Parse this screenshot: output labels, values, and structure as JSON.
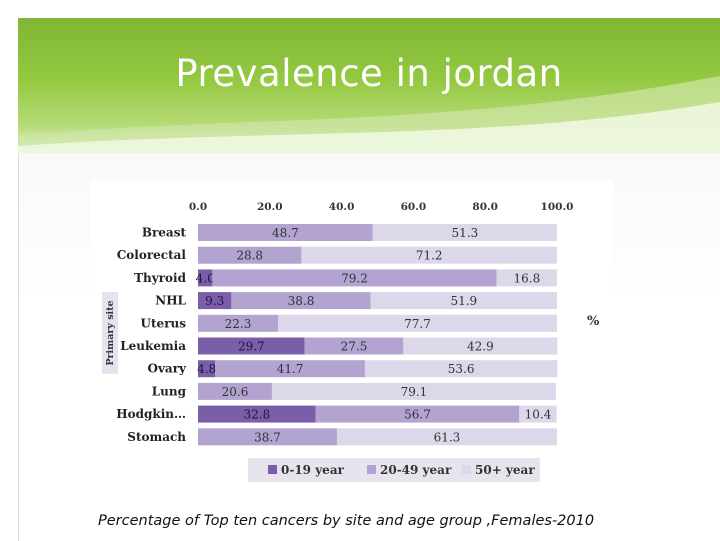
{
  "slide": {
    "title": "Prevalence in jordan",
    "caption": "Percentage of Top ten cancers by site and age group ,Females-2010"
  },
  "colors": {
    "header_green": "#8cc13c",
    "series": [
      "#7b5ea8",
      "#b3a3d1",
      "#ddd7ea"
    ]
  },
  "chart_data": {
    "type": "bar",
    "orientation": "horizontal",
    "stacked": true,
    "categories": [
      "Breast",
      "Colorectal",
      "Thyroid",
      "NHL",
      "Uterus",
      "Leukemia",
      "Ovary",
      "Lung",
      "Hodgkin…",
      "Stomach"
    ],
    "series": [
      {
        "name": "0-19 year",
        "values": [
          null,
          null,
          4.0,
          9.3,
          null,
          29.7,
          4.8,
          null,
          32.8,
          null
        ],
        "labels": [
          "",
          "",
          "4.0",
          "9.3",
          "",
          "29.7",
          "4.8",
          "",
          "32.8",
          ""
        ]
      },
      {
        "name": "20-49 year",
        "values": [
          48.7,
          28.8,
          79.2,
          38.8,
          22.3,
          27.5,
          41.7,
          20.6,
          56.7,
          38.7
        ],
        "labels": [
          "48.7",
          "28.8",
          "79.2",
          "38.8",
          "22.3",
          "27.5",
          "41.7",
          "20.6",
          "56.7",
          "38.7"
        ]
      },
      {
        "name": "50+ year",
        "values": [
          51.3,
          71.2,
          16.8,
          51.9,
          77.7,
          42.9,
          53.6,
          79.1,
          10.4,
          61.3
        ],
        "labels": [
          "51.3",
          "71.2",
          "16.8",
          "51.9",
          "77.7",
          "42.9",
          "53.6",
          "79.1",
          "10.4",
          "61.3"
        ]
      }
    ],
    "xlim": [
      0,
      100
    ],
    "xticks": [
      "0.0",
      "20.0",
      "40.0",
      "60.0",
      "80.0",
      "100.0"
    ],
    "xticks_position": "top",
    "ylabel": "Primary site",
    "unit_label": "%",
    "legend_position": "bottom",
    "legend_labels": [
      "0-19 year",
      "20-49 year",
      "50+ year"
    ]
  }
}
